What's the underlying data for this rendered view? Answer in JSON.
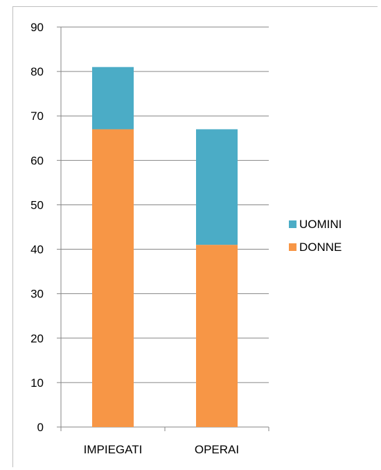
{
  "chart_data": {
    "type": "bar",
    "stacked": true,
    "categories": [
      "IMPIEGATI",
      "OPERAI"
    ],
    "series": [
      {
        "name": "DONNE",
        "values": [
          67,
          41
        ],
        "color": "#F79646"
      },
      {
        "name": "UOMINI",
        "values": [
          14,
          26
        ],
        "color": "#4BACC6"
      }
    ],
    "ylim": [
      0,
      90
    ],
    "yticks": [
      0,
      10,
      20,
      30,
      40,
      50,
      60,
      70,
      80,
      90
    ],
    "grid": true,
    "legend": [
      "UOMINI",
      "DONNE"
    ],
    "legend_position": "right",
    "title": "",
    "xlabel": "",
    "ylabel": ""
  }
}
